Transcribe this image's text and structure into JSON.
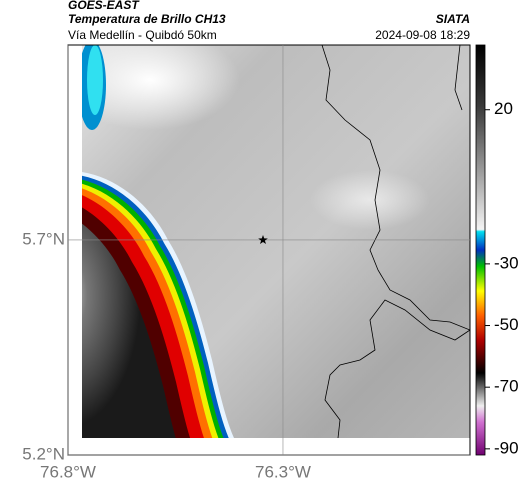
{
  "header": {
    "title": "GOES-EAST",
    "subtitle": "Temperatura de Brillo CH13",
    "agency": "SIATA",
    "location": "Vía Medellín - Quibdó 50km",
    "datetime": "2024-09-08 18:29"
  },
  "map": {
    "xlim": [
      -76.8,
      -75.865
    ],
    "ylim": [
      5.2,
      6.153
    ],
    "xticks": [
      {
        "value": -76.8,
        "label": "76.8°W"
      },
      {
        "value": -76.3,
        "label": "76.3°W"
      }
    ],
    "yticks": [
      {
        "value": 5.2,
        "label": "5.2°N"
      },
      {
        "value": 5.7,
        "label": "5.7°N"
      }
    ]
  },
  "colorbar": {
    "lim": [
      -92,
      41
    ],
    "ticks": [
      20,
      -30,
      -50,
      -70,
      -90
    ]
  }
}
